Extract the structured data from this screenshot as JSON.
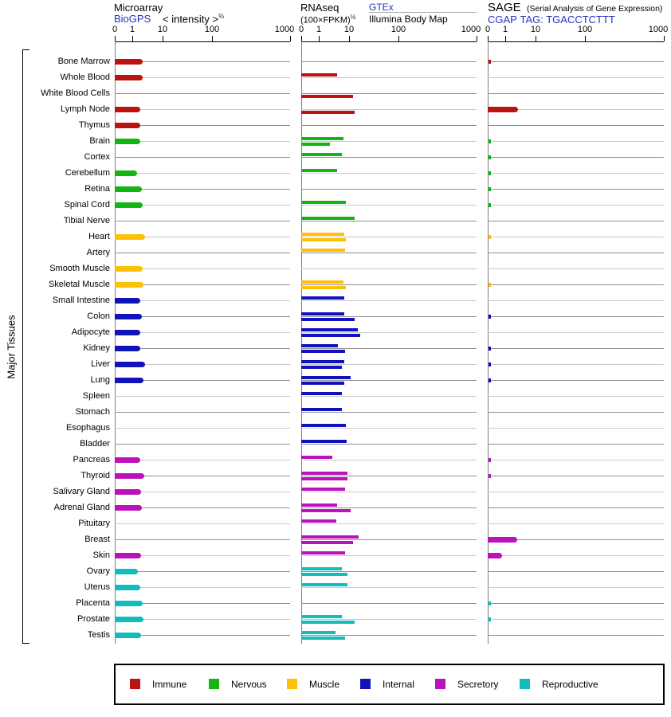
{
  "chart_data": {
    "type": "bar",
    "orientation": "horizontal",
    "group_label": "Major Tissues",
    "ticks": [
      "0",
      "1",
      "10",
      "100",
      "1000"
    ],
    "panels": {
      "microarray": {
        "title": "Microarray",
        "source_link": "BioGPS",
        "scale_note": "< intensity >",
        "scale_exp": "⅔"
      },
      "rnaseq": {
        "title": "RNAseq",
        "scale_note": "(100×FPKM)",
        "scale_exp": "½",
        "source_link": "GTEx",
        "source2": "Illumina Body Map"
      },
      "sage": {
        "title": "SAGE",
        "subtitle": "(Serial Analysis of Gene Expression)",
        "source_link": "CGAP",
        "tag_text": "TAG: TGACCTCTTT"
      }
    },
    "categories_legend": [
      {
        "key": "immune",
        "label": "Immune",
        "color": "#bb1212"
      },
      {
        "key": "nervous",
        "label": "Nervous",
        "color": "#12b512"
      },
      {
        "key": "muscle",
        "label": "Muscle",
        "color": "#fdc006"
      },
      {
        "key": "internal",
        "label": "Internal",
        "color": "#1212bb"
      },
      {
        "key": "secretory",
        "label": "Secretory",
        "color": "#bb12bb"
      },
      {
        "key": "reproductive",
        "label": "Reproductive",
        "color": "#10bcbc"
      }
    ],
    "tissues": [
      {
        "name": "Bone Marrow",
        "category": "immune",
        "microarray": 2.2,
        "gtex": null,
        "body_map": null,
        "sage": 0.15,
        "sage_style": "mark"
      },
      {
        "name": "Whole Blood",
        "category": "immune",
        "microarray": 2.2,
        "gtex": 4.0,
        "body_map": null,
        "sage": null
      },
      {
        "name": "White Blood Cells",
        "category": "immune",
        "microarray": null,
        "gtex": null,
        "body_map": 12,
        "sage": null
      },
      {
        "name": "Lymph Node",
        "category": "immune",
        "microarray": 1.8,
        "gtex": null,
        "body_map": 13,
        "sage": 2.6,
        "sage_style": "bar"
      },
      {
        "name": "Thymus",
        "category": "immune",
        "microarray": 1.8,
        "gtex": null,
        "body_map": null,
        "sage": null
      },
      {
        "name": "Brain",
        "category": "nervous",
        "microarray": 1.8,
        "gtex": 6.4,
        "body_map": 2.3,
        "sage": 0.15,
        "sage_style": "mark"
      },
      {
        "name": "Cortex",
        "category": "nervous",
        "microarray": null,
        "gtex": 5.7,
        "body_map": null,
        "sage": 0.15,
        "sage_style": "mark"
      },
      {
        "name": "Cerebellum",
        "category": "nervous",
        "microarray": 1.4,
        "gtex": 4.0,
        "body_map": null,
        "sage": 0.15,
        "sage_style": "mark"
      },
      {
        "name": "Retina",
        "category": "nervous",
        "microarray": 2.1,
        "gtex": null,
        "body_map": null,
        "sage": 0.15,
        "sage_style": "mark"
      },
      {
        "name": "Spinal Cord",
        "category": "nervous",
        "microarray": 2.2,
        "gtex": 8.0,
        "body_map": null,
        "sage": 0.15,
        "sage_style": "mark"
      },
      {
        "name": "Tibial Nerve",
        "category": "nervous",
        "microarray": null,
        "gtex": 13,
        "body_map": null,
        "sage": null
      },
      {
        "name": "Heart",
        "category": "muscle",
        "microarray": 2.6,
        "gtex": 7.0,
        "body_map": 8.0,
        "sage": 0.15,
        "sage_style": "mark"
      },
      {
        "name": "Artery",
        "category": "muscle",
        "microarray": null,
        "gtex": 7.4,
        "body_map": null,
        "sage": null
      },
      {
        "name": "Smooth Muscle",
        "category": "muscle",
        "microarray": 2.2,
        "gtex": null,
        "body_map": null,
        "sage": null
      },
      {
        "name": "Skeletal Muscle",
        "category": "muscle",
        "microarray": 2.3,
        "gtex": 6.6,
        "body_map": 8.0,
        "sage": 0.15,
        "sage_style": "mark"
      },
      {
        "name": "Small Intestine",
        "category": "internal",
        "microarray": 1.8,
        "gtex": 7.0,
        "body_map": null,
        "sage": null
      },
      {
        "name": "Colon",
        "category": "internal",
        "microarray": 2.1,
        "gtex": 6.8,
        "body_map": 13,
        "sage": 0.15,
        "sage_style": "mark"
      },
      {
        "name": "Adipocyte",
        "category": "internal",
        "microarray": 1.8,
        "gtex": 15,
        "body_map": 17,
        "sage": null
      },
      {
        "name": "Kidney",
        "category": "internal",
        "microarray": 1.8,
        "gtex": 4.4,
        "body_map": 7.4,
        "sage": 0.15,
        "sage_style": "mark"
      },
      {
        "name": "Liver",
        "category": "internal",
        "microarray": 2.6,
        "gtex": 6.8,
        "body_map": 5.7,
        "sage": 0.15,
        "sage_style": "mark"
      },
      {
        "name": "Lung",
        "category": "internal",
        "microarray": 2.3,
        "gtex": 11,
        "body_map": 7.0,
        "sage": 0.15,
        "sage_style": "mark"
      },
      {
        "name": "Spleen",
        "category": "internal",
        "microarray": null,
        "gtex": 5.7,
        "body_map": null,
        "sage": null
      },
      {
        "name": "Stomach",
        "category": "internal",
        "microarray": null,
        "gtex": 5.7,
        "body_map": null,
        "sage": null
      },
      {
        "name": "Esophagus",
        "category": "internal",
        "microarray": null,
        "gtex": 7.9,
        "body_map": null,
        "sage": null
      },
      {
        "name": "Bladder",
        "category": "internal",
        "microarray": null,
        "gtex": 8.5,
        "body_map": null,
        "sage": null
      },
      {
        "name": "Pancreas",
        "category": "secretory",
        "microarray": 1.8,
        "gtex": 2.9,
        "body_map": null,
        "sage": 0.15,
        "sage_style": "mark"
      },
      {
        "name": "Thyroid",
        "category": "secretory",
        "microarray": 2.5,
        "gtex": 8.8,
        "body_map": 8.8,
        "sage": 0.15,
        "sage_style": "mark"
      },
      {
        "name": "Salivary Gland",
        "category": "secretory",
        "microarray": 1.9,
        "gtex": 7.4,
        "body_map": null,
        "sage": null
      },
      {
        "name": "Adrenal Gland",
        "category": "secretory",
        "microarray": 2.1,
        "gtex": 4.0,
        "body_map": 11,
        "sage": null
      },
      {
        "name": "Pituitary",
        "category": "secretory",
        "microarray": null,
        "gtex": 3.8,
        "body_map": null,
        "sage": null
      },
      {
        "name": "Breast",
        "category": "secretory",
        "microarray": null,
        "gtex": 16,
        "body_map": 12,
        "sage": 2.5,
        "sage_style": "bar"
      },
      {
        "name": "Skin",
        "category": "secretory",
        "microarray": 1.9,
        "gtex": 7.4,
        "body_map": null,
        "sage": 0.8,
        "sage_style": "bar"
      },
      {
        "name": "Ovary",
        "category": "reproductive",
        "microarray": 1.5,
        "gtex": 5.7,
        "body_map": 8.8,
        "sage": null
      },
      {
        "name": "Uterus",
        "category": "reproductive",
        "microarray": 1.8,
        "gtex": 9.0,
        "body_map": null,
        "sage": null
      },
      {
        "name": "Placenta",
        "category": "reproductive",
        "microarray": 2.2,
        "gtex": null,
        "body_map": null,
        "sage": 0.15,
        "sage_style": "mark"
      },
      {
        "name": "Prostate",
        "category": "reproductive",
        "microarray": 2.3,
        "gtex": 6.0,
        "body_map": 13,
        "sage": 0.15,
        "sage_style": "mark"
      },
      {
        "name": "Testis",
        "category": "reproductive",
        "microarray": 1.9,
        "gtex": 3.6,
        "body_map": 7.4,
        "sage": null
      }
    ]
  }
}
